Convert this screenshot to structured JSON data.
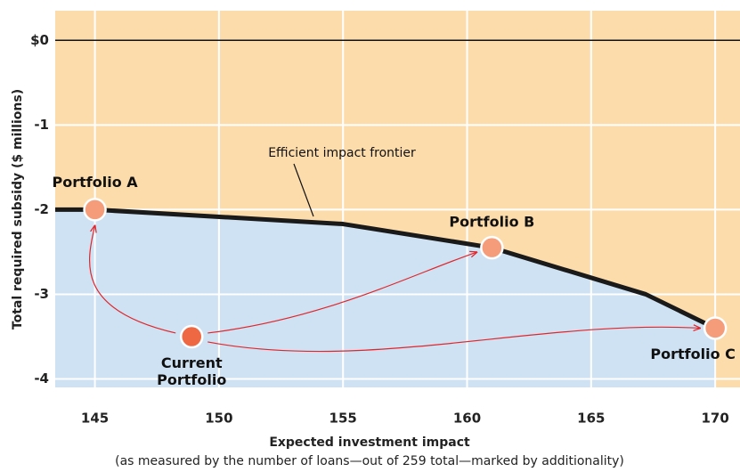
{
  "chart_data": {
    "type": "line",
    "xlabel": "Expected investment impact",
    "xlabel_sub": "(as measured by the number of loans—out of 259 total—marked by additionality)",
    "ylabel": "Total required subsidy ($ millions)",
    "xlim": [
      143.4,
      171
    ],
    "ylim": [
      -4.1,
      0.35
    ],
    "xticks": [
      145,
      150,
      155,
      160,
      165,
      170
    ],
    "yticks": [
      {
        "value": 0,
        "label": "$0"
      },
      -1,
      -2,
      -3,
      -4
    ],
    "grid": true,
    "zero_line": true,
    "above_color": "#fddcac",
    "below_color": "#cfe2f3",
    "series": [
      {
        "name": "Efficient impact frontier",
        "color": "#1a1a1a",
        "x": [
          143.4,
          145,
          155,
          161,
          167.2,
          170
        ],
        "values": [
          -2.0,
          -2.0,
          -2.17,
          -2.45,
          -3.0,
          -3.4
        ]
      }
    ],
    "points": [
      {
        "name": "Portfolio A",
        "x": 145,
        "y": -2.0,
        "color": "#f59d7a"
      },
      {
        "name": "Portfolio B",
        "x": 161,
        "y": -2.45,
        "color": "#f59d7a"
      },
      {
        "name": "Portfolio C",
        "x": 170,
        "y": -3.4,
        "color": "#f59d7a"
      },
      {
        "name": "Current Portfolio",
        "x": 148.9,
        "y": -3.5,
        "color": "#ee6843"
      }
    ],
    "arrow_color": "#e0262b"
  }
}
